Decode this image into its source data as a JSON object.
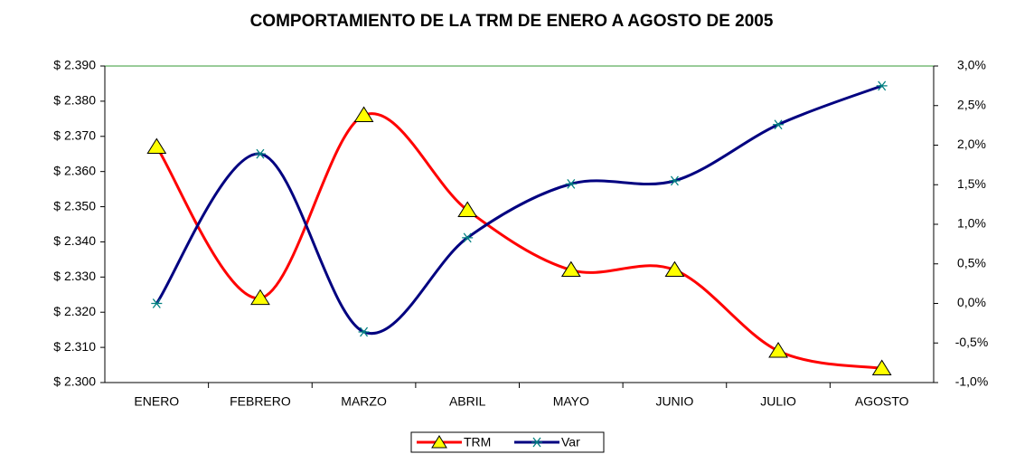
{
  "chart_data": {
    "type": "line",
    "title": "COMPORTAMIENTO DE LA TRM DE ENERO A AGOSTO DE 2005",
    "categories": [
      "ENERO",
      "FEBRERO",
      "MARZO",
      "ABRIL",
      "MAYO",
      "JUNIO",
      "JULIO",
      "AGOSTO"
    ],
    "series": [
      {
        "name": "TRM",
        "color": "#ff0000",
        "marker_color": "#ffff00",
        "axis": "y",
        "values": [
          2367,
          2324,
          2376,
          2349,
          2332,
          2332,
          2309,
          2304
        ]
      },
      {
        "name": "Var",
        "color": "#000080",
        "marker_color": "#008080",
        "axis": "y2",
        "values": [
          0.0,
          1.89,
          -0.36,
          0.83,
          1.51,
          1.55,
          2.26,
          2.75
        ]
      }
    ],
    "ylim": [
      2300,
      2390
    ],
    "yticks": [
      {
        "value": 2300,
        "label": "$ 2.300"
      },
      {
        "value": 2310,
        "label": "$ 2.310"
      },
      {
        "value": 2320,
        "label": "$ 2.320"
      },
      {
        "value": 2330,
        "label": "$ 2.330"
      },
      {
        "value": 2340,
        "label": "$ 2.340"
      },
      {
        "value": 2350,
        "label": "$ 2.350"
      },
      {
        "value": 2360,
        "label": "$ 2.360"
      },
      {
        "value": 2370,
        "label": "$ 2.370"
      },
      {
        "value": 2380,
        "label": "$ 2.380"
      },
      {
        "value": 2390,
        "label": "$ 2.390"
      }
    ],
    "y2lim": [
      -1.0,
      3.0
    ],
    "y2ticks": [
      {
        "value": -1.0,
        "label": "-1,0%"
      },
      {
        "value": -0.5,
        "label": "-0,5%"
      },
      {
        "value": 0.0,
        "label": "0,0%"
      },
      {
        "value": 0.5,
        "label": "0,5%"
      },
      {
        "value": 1.0,
        "label": "1,0%"
      },
      {
        "value": 1.5,
        "label": "1,5%"
      },
      {
        "value": 2.0,
        "label": "2,0%"
      },
      {
        "value": 2.5,
        "label": "2,5%"
      },
      {
        "value": 3.0,
        "label": "3,0%"
      }
    ],
    "grid": false,
    "legend": "bottom"
  }
}
